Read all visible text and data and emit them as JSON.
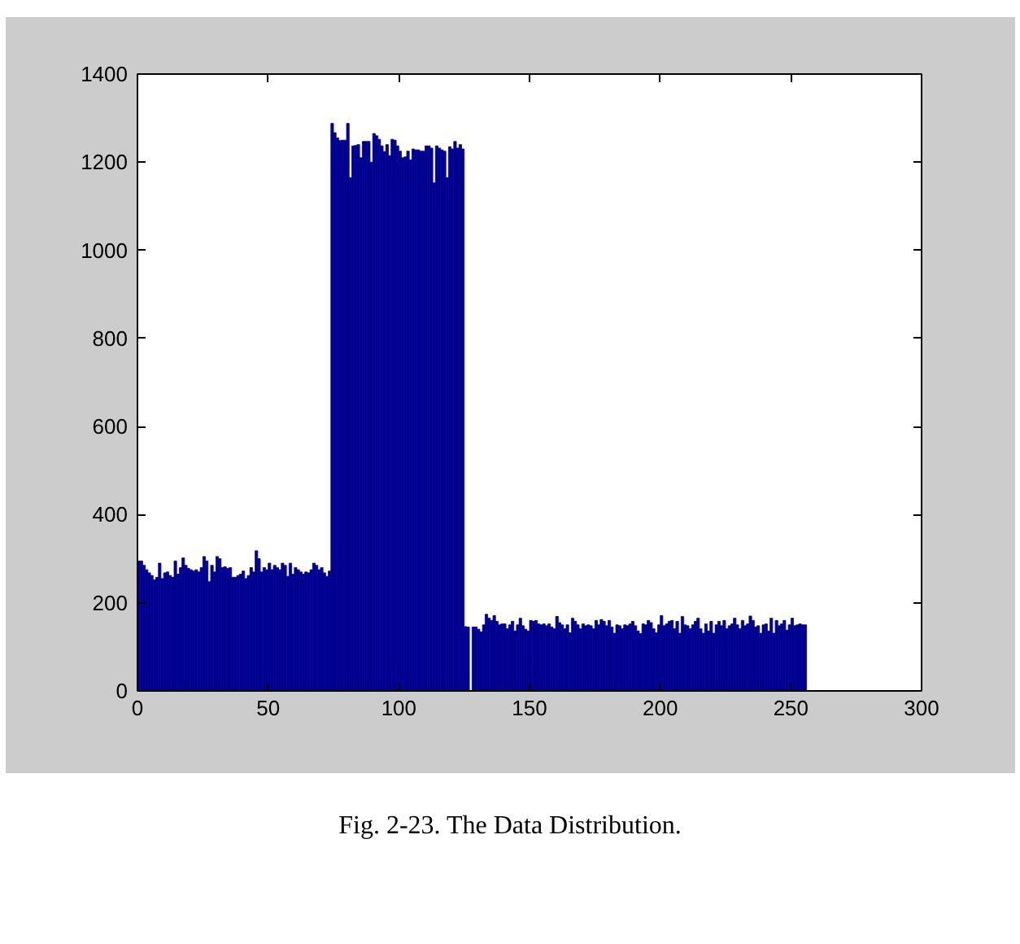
{
  "chart_data": {
    "type": "histogram",
    "color": "#000090",
    "bins": [
      0,
      1,
      2,
      3,
      4,
      5,
      6,
      7,
      8,
      9,
      10,
      11,
      12,
      13,
      14,
      15,
      16,
      17,
      18,
      19,
      20,
      21,
      22,
      23,
      24,
      25,
      26,
      27,
      28,
      29,
      30,
      31,
      32,
      33,
      34,
      35,
      36,
      37,
      38,
      39,
      40,
      41,
      42,
      43,
      44,
      45,
      46,
      47,
      48,
      49,
      50,
      51,
      52,
      53,
      54,
      55,
      56,
      57,
      58,
      59,
      60,
      61,
      62,
      63,
      64,
      65,
      66,
      67,
      68,
      69,
      70,
      71,
      72,
      73,
      74,
      75,
      76,
      77,
      78,
      79,
      80,
      81,
      82,
      83,
      84,
      85,
      86,
      87,
      88,
      89,
      90,
      91,
      92,
      93,
      94,
      95,
      96,
      97,
      98,
      99,
      100,
      101,
      102,
      103,
      104,
      105,
      106,
      107,
      108,
      109,
      110,
      111,
      112,
      113,
      114,
      115,
      116,
      117,
      118,
      119,
      120,
      121,
      122,
      123,
      124,
      125,
      126,
      127,
      128,
      129,
      130,
      131,
      132,
      133,
      134,
      135,
      136,
      137,
      138,
      139,
      140,
      141,
      142,
      143,
      144,
      145,
      146,
      147,
      148,
      149,
      150,
      151,
      152,
      153,
      154,
      155,
      156,
      157,
      158,
      159,
      160,
      161,
      162,
      163,
      164,
      165,
      166,
      167,
      168,
      169,
      170,
      171,
      172,
      173,
      174,
      175,
      176,
      177,
      178,
      179,
      180,
      181,
      182,
      183,
      184,
      185,
      186,
      187,
      188,
      189,
      190,
      191,
      192,
      193,
      194,
      195,
      196,
      197,
      198,
      199,
      200,
      201,
      202,
      203,
      204,
      205,
      206,
      207,
      208,
      209,
      210,
      211,
      212,
      213,
      214,
      215,
      216,
      217,
      218,
      219,
      220,
      221,
      222,
      223,
      224,
      225,
      226,
      227,
      228,
      229,
      230,
      231,
      232,
      233,
      234,
      235,
      236,
      237,
      238,
      239,
      240,
      241,
      242,
      243,
      244,
      245,
      246,
      247,
      248,
      249,
      250,
      251,
      252,
      253,
      254,
      255,
      256
    ],
    "values": [
      295,
      295,
      285,
      275,
      268,
      262,
      252,
      258,
      290,
      255,
      268,
      270,
      262,
      258,
      295,
      265,
      280,
      302,
      285,
      278,
      275,
      272,
      275,
      270,
      280,
      305,
      295,
      248,
      285,
      270,
      305,
      300,
      280,
      282,
      278,
      280,
      258,
      258,
      262,
      265,
      272,
      255,
      262,
      280,
      270,
      318,
      300,
      270,
      280,
      275,
      290,
      275,
      285,
      280,
      275,
      290,
      285,
      260,
      290,
      265,
      280,
      275,
      270,
      265,
      270,
      268,
      275,
      290,
      285,
      275,
      280,
      268,
      260,
      272,
      1288,
      1267,
      1255,
      1249,
      1250,
      1250,
      1288,
      1165,
      1237,
      1238,
      1240,
      1210,
      1247,
      1247,
      1247,
      1200,
      1265,
      1260,
      1252,
      1237,
      1224,
      1240,
      1215,
      1252,
      1250,
      1237,
      1225,
      1210,
      1212,
      1225,
      1205,
      1230,
      1228,
      1228,
      1225,
      1225,
      1237,
      1237,
      1232,
      1153,
      1237,
      1232,
      1228,
      1225,
      1165,
      1235,
      1230,
      1247,
      1232,
      1240,
      1230,
      146,
      145,
      0,
      145,
      145,
      140,
      134,
      150,
      174,
      165,
      160,
      171,
      158,
      150,
      152,
      152,
      141,
      150,
      158,
      136,
      150,
      165,
      148,
      140,
      136,
      160,
      158,
      160,
      152,
      150,
      152,
      148,
      152,
      145,
      141,
      169,
      155,
      150,
      141,
      150,
      132,
      165,
      158,
      150,
      141,
      152,
      148,
      150,
      148,
      141,
      160,
      150,
      162,
      158,
      148,
      160,
      145,
      131,
      150,
      148,
      141,
      150,
      148,
      152,
      158,
      148,
      136,
      130,
      152,
      150,
      160,
      155,
      141,
      132,
      150,
      171,
      148,
      152,
      158,
      160,
      141,
      158,
      131,
      169,
      150,
      148,
      141,
      150,
      158,
      165,
      141,
      131,
      152,
      136,
      158,
      131,
      150,
      158,
      148,
      160,
      141,
      148,
      152,
      165,
      150,
      141,
      160,
      148,
      152,
      170,
      160,
      145,
      148,
      131,
      150,
      152,
      136,
      165,
      131,
      160,
      148,
      152,
      160,
      138,
      150,
      165,
      148,
      150,
      152,
      150,
      150
    ],
    "xlim": [
      0,
      300
    ],
    "ylim": [
      0,
      1400
    ],
    "xticks": [
      0,
      50,
      100,
      150,
      200,
      250,
      300
    ],
    "yticks": [
      0,
      200,
      400,
      600,
      800,
      1000,
      1200,
      1400
    ],
    "annotations": [
      "Fig. 2-23. The Data Distribution."
    ]
  }
}
